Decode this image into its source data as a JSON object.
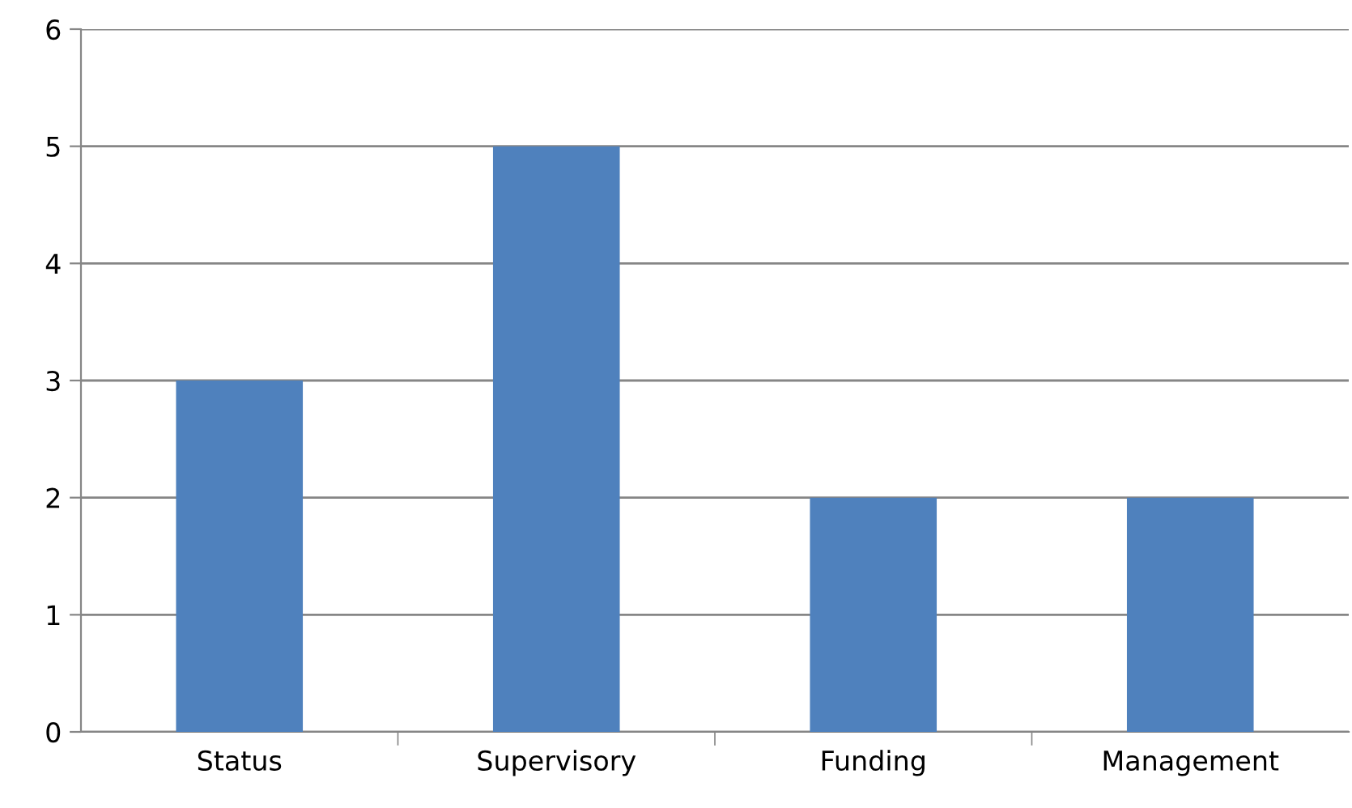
{
  "chart_data": {
    "type": "bar",
    "categories": [
      "Status",
      "Supervisory",
      "Funding",
      "Management"
    ],
    "values": [
      3,
      5,
      2,
      2
    ],
    "color": "#4f81bd",
    "ylim": [
      0,
      6
    ],
    "yticks": [
      0,
      1,
      2,
      3,
      4,
      5,
      6
    ],
    "grid": "y",
    "legend": false
  }
}
